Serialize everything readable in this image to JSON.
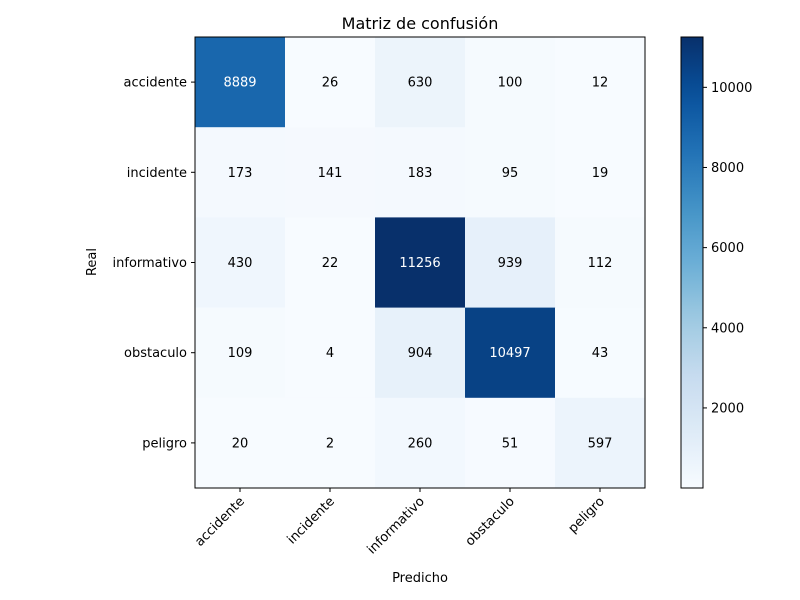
{
  "chart_data": {
    "type": "heatmap",
    "title": "Matriz de confusión",
    "xlabel": "Predicho",
    "ylabel": "Real",
    "x_categories": [
      "accidente",
      "incidente",
      "informativo",
      "obstaculo",
      "peligro"
    ],
    "y_categories": [
      "accidente",
      "incidente",
      "informativo",
      "obstaculo",
      "peligro"
    ],
    "values": [
      [
        8889,
        26,
        630,
        100,
        12
      ],
      [
        173,
        141,
        183,
        95,
        19
      ],
      [
        430,
        22,
        11256,
        939,
        112
      ],
      [
        109,
        4,
        904,
        10497,
        43
      ],
      [
        20,
        2,
        260,
        51,
        597
      ]
    ],
    "colorbar": {
      "min": 2,
      "max": 11256,
      "ticks": [
        2000,
        4000,
        6000,
        8000,
        10000
      ],
      "colormap": "Blues"
    },
    "grid": false,
    "legend": "none"
  }
}
